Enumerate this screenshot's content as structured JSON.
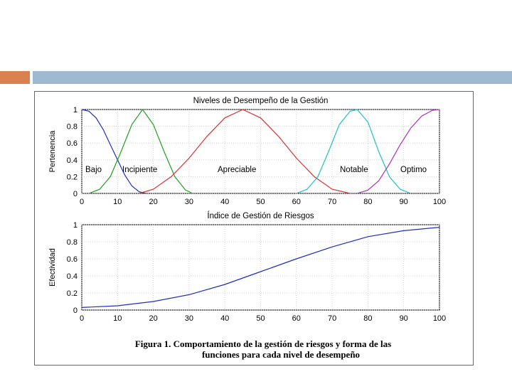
{
  "chart_data": [
    {
      "type": "line",
      "title": "Niveles de Desempeño de la Gestión",
      "xlabel": "Índice de Gestión de Riesgos",
      "ylabel": "Pertenencia",
      "xlim": [
        0,
        100
      ],
      "ylim": [
        0,
        1
      ],
      "xticks": [
        "0",
        "10",
        "20",
        "30",
        "40",
        "50",
        "60",
        "70",
        "80",
        "90",
        "100"
      ],
      "yticks": [
        "0",
        "0.2",
        "0.4",
        "0.6",
        "0.8",
        "1"
      ],
      "grid": true,
      "series": [
        {
          "name": "Bajo",
          "color": "#1f2fbf",
          "x": [
            0,
            2,
            4,
            6,
            8,
            10,
            12,
            14,
            16,
            18
          ],
          "y": [
            1.0,
            0.98,
            0.9,
            0.76,
            0.58,
            0.4,
            0.22,
            0.09,
            0.02,
            0.0
          ]
        },
        {
          "name": "Incipiente",
          "color": "#1f9f1f",
          "x": [
            2,
            5,
            8,
            11,
            14,
            17,
            20,
            23,
            26,
            29,
            31
          ],
          "y": [
            0.0,
            0.05,
            0.2,
            0.5,
            0.82,
            1.0,
            0.82,
            0.5,
            0.2,
            0.04,
            0.0
          ]
        },
        {
          "name": "Apreciable",
          "color": "#e03030",
          "x": [
            16,
            20,
            25,
            30,
            35,
            40,
            45,
            50,
            55,
            60,
            65,
            70,
            75
          ],
          "y": [
            0.0,
            0.05,
            0.2,
            0.42,
            0.68,
            0.9,
            1.0,
            0.9,
            0.68,
            0.42,
            0.2,
            0.05,
            0.0
          ]
        },
        {
          "name": "Notable",
          "color": "#20c0c8",
          "x": [
            60,
            63,
            66,
            69,
            72,
            75,
            77,
            80,
            83,
            86,
            89,
            92
          ],
          "y": [
            0.0,
            0.05,
            0.2,
            0.5,
            0.82,
            0.98,
            1.0,
            0.85,
            0.5,
            0.2,
            0.05,
            0.0
          ]
        },
        {
          "name": "Optimo",
          "color": "#b030c0",
          "x": [
            77,
            80,
            83,
            86,
            89,
            92,
            95,
            98,
            100
          ],
          "y": [
            0.0,
            0.04,
            0.15,
            0.35,
            0.58,
            0.78,
            0.92,
            0.99,
            1.0
          ]
        }
      ],
      "annotations": [
        "Bajo",
        "Incipiente",
        "Apreciable",
        "Notable",
        "Optimo"
      ]
    },
    {
      "type": "line",
      "title": "",
      "xlabel": "",
      "ylabel": "Efectividad",
      "xlim": [
        0,
        100
      ],
      "ylim": [
        0,
        1
      ],
      "xticks": [
        "0",
        "10",
        "20",
        "30",
        "40",
        "50",
        "60",
        "70",
        "80",
        "90",
        "100"
      ],
      "yticks": [
        "0",
        "0.2",
        "0.4",
        "0.6",
        "0.8",
        "1"
      ],
      "grid": true,
      "series": [
        {
          "name": "",
          "color": "#1f2fbf",
          "x": [
            0,
            10,
            20,
            30,
            40,
            50,
            60,
            70,
            80,
            90,
            100
          ],
          "y": [
            0.03,
            0.05,
            0.1,
            0.18,
            0.3,
            0.45,
            0.6,
            0.74,
            0.86,
            0.93,
            0.97
          ]
        }
      ]
    }
  ],
  "caption": {
    "line1": "Figura 1.  Comportamiento de la gestión de riesgos y forma de las",
    "line2": "funciones para cada nivel de desempeño"
  }
}
